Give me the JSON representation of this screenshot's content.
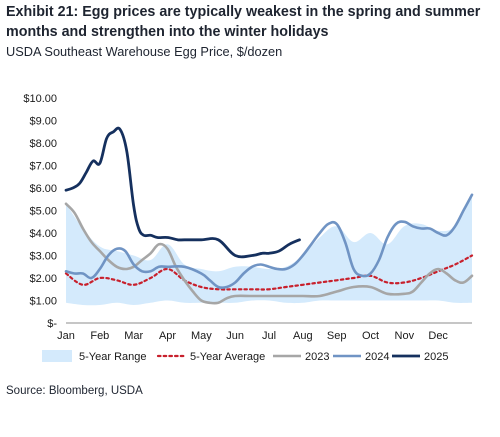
{
  "title": "Exhibit 21: Egg prices are typically weakest in the spring and summer months and strengthen into the winter holidays",
  "subtitle": "USDA Southeast Warehouse Egg Price, $/dozen",
  "source": "Source: Bloomberg, USDA",
  "colors": {
    "range": "#d4eafc",
    "average": "#c8202c",
    "s2023": "#a6a6a6",
    "s2024": "#7094c4",
    "s2025": "#15305e"
  },
  "chart_data": {
    "type": "line",
    "title": "",
    "xlabel": "",
    "ylabel": "",
    "xlim": [
      0,
      12
    ],
    "ylim": [
      0,
      10
    ],
    "month_labels": [
      "Jan",
      "Feb",
      "Mar",
      "Apr",
      "May",
      "Jun",
      "Jul",
      "Aug",
      "Sep",
      "Oct",
      "Nov",
      "Dec"
    ],
    "y_ticks": [
      0,
      1,
      2,
      3,
      4,
      5,
      6,
      7,
      8,
      9,
      10
    ],
    "y_tick_labels": [
      "$-",
      "$1.00",
      "$2.00",
      "$3.00",
      "$4.00",
      "$5.00",
      "$6.00",
      "$7.00",
      "$8.00",
      "$9.00",
      "$10.00"
    ],
    "legend": {
      "range": "5-Year Range",
      "average": "5-Year Average",
      "s2023": "2023",
      "s2024": "2024",
      "s2025": "2025"
    },
    "range_band": {
      "x": [
        0,
        0.5,
        1,
        1.5,
        2,
        2.5,
        3,
        3.5,
        4,
        4.5,
        5,
        5.5,
        6,
        6.5,
        7,
        7.5,
        8,
        8.5,
        9,
        9.5,
        10,
        10.5,
        11,
        11.5,
        12
      ],
      "lower": [
        0.9,
        0.8,
        0.8,
        0.9,
        0.8,
        0.9,
        1.0,
        0.9,
        0.9,
        0.9,
        0.9,
        1.0,
        1.0,
        0.9,
        0.9,
        1.0,
        1.0,
        1.0,
        1.0,
        1.0,
        1.0,
        1.0,
        1.0,
        0.9,
        0.9
      ],
      "upper": [
        5.3,
        4.2,
        3.4,
        3.2,
        3.0,
        2.8,
        3.5,
        2.6,
        2.4,
        2.3,
        2.5,
        2.5,
        2.4,
        2.5,
        3.0,
        3.8,
        4.3,
        3.6,
        4.0,
        3.5,
        4.3,
        4.4,
        4.1,
        4.3,
        5.6
      ]
    },
    "series": [
      {
        "name": "5-Year Average",
        "key": "average",
        "x": [
          0,
          0.5,
          1,
          1.5,
          2,
          2.5,
          3,
          3.5,
          4,
          4.5,
          5,
          5.5,
          6,
          6.5,
          7,
          7.5,
          8,
          8.5,
          9,
          9.5,
          10,
          10.5,
          11,
          11.5,
          12
        ],
        "values": [
          2.2,
          1.7,
          2.0,
          1.9,
          1.7,
          2.0,
          2.4,
          1.9,
          1.6,
          1.5,
          1.5,
          1.5,
          1.5,
          1.6,
          1.7,
          1.8,
          1.9,
          2.0,
          2.1,
          1.8,
          1.8,
          2.0,
          2.3,
          2.6,
          3.0
        ]
      },
      {
        "name": "2023",
        "key": "s2023",
        "x": [
          0,
          0.25,
          0.5,
          0.75,
          1,
          1.25,
          1.5,
          1.75,
          2,
          2.25,
          2.5,
          2.75,
          3,
          3.25,
          3.5,
          3.75,
          4,
          4.25,
          4.5,
          4.75,
          5,
          5.5,
          6,
          6.5,
          7,
          7.5,
          8,
          8.5,
          9,
          9.5,
          10,
          10.25,
          10.5,
          10.75,
          11,
          11.25,
          11.5,
          11.75,
          12
        ],
        "values": [
          5.3,
          4.9,
          4.2,
          3.6,
          3.2,
          2.8,
          2.5,
          2.4,
          2.5,
          2.8,
          3.1,
          3.5,
          3.3,
          2.5,
          1.9,
          1.4,
          1.0,
          0.9,
          0.9,
          1.1,
          1.2,
          1.2,
          1.2,
          1.2,
          1.2,
          1.2,
          1.4,
          1.6,
          1.6,
          1.3,
          1.3,
          1.4,
          1.8,
          2.2,
          2.4,
          2.2,
          1.9,
          1.8,
          2.1
        ]
      },
      {
        "name": "2024",
        "key": "s2024",
        "x": [
          0,
          0.25,
          0.5,
          0.75,
          1,
          1.25,
          1.5,
          1.75,
          2,
          2.25,
          2.5,
          2.75,
          3,
          3.5,
          4,
          4.25,
          4.5,
          4.75,
          5,
          5.25,
          5.5,
          5.75,
          6,
          6.25,
          6.5,
          6.75,
          7,
          7.25,
          7.5,
          7.75,
          8,
          8.25,
          8.5,
          8.75,
          9,
          9.25,
          9.5,
          9.75,
          10,
          10.25,
          10.5,
          10.75,
          11,
          11.25,
          11.5,
          11.75,
          12
        ],
        "values": [
          2.3,
          2.2,
          2.2,
          2.0,
          2.4,
          3.0,
          3.3,
          3.2,
          2.6,
          2.3,
          2.3,
          2.5,
          2.5,
          2.5,
          2.2,
          1.9,
          1.6,
          1.6,
          1.8,
          2.2,
          2.5,
          2.6,
          2.5,
          2.4,
          2.4,
          2.6,
          3.0,
          3.5,
          4.0,
          4.4,
          4.4,
          3.6,
          2.4,
          2.1,
          2.2,
          2.8,
          3.8,
          4.4,
          4.5,
          4.3,
          4.2,
          4.2,
          4.0,
          3.9,
          4.3,
          5.0,
          5.7
        ]
      },
      {
        "name": "2025",
        "key": "s2025",
        "x": [
          0,
          0.2,
          0.4,
          0.6,
          0.8,
          1.0,
          1.2,
          1.4,
          1.6,
          1.8,
          2.0,
          2.15,
          2.3,
          2.5,
          2.7,
          3.0,
          3.3,
          3.5,
          4.0,
          4.5,
          5.0,
          5.5,
          5.8,
          6.0,
          6.3,
          6.6,
          6.9
        ],
        "values": [
          5.9,
          6.0,
          6.2,
          6.7,
          7.2,
          7.1,
          8.2,
          8.5,
          8.6,
          7.6,
          5.2,
          4.2,
          3.9,
          3.9,
          3.8,
          3.8,
          3.7,
          3.7,
          3.7,
          3.7,
          3.0,
          3.0,
          3.1,
          3.1,
          3.2,
          3.5,
          3.7
        ]
      }
    ]
  }
}
